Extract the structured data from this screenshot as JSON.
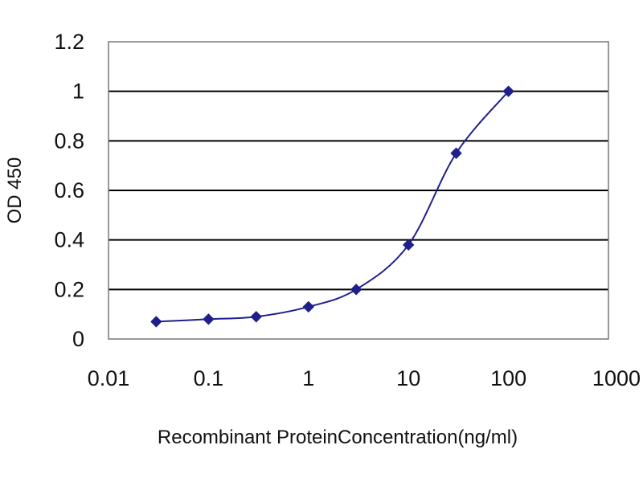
{
  "chart_data": {
    "type": "scatter",
    "title": "",
    "xlabel": "Recombinant ProteinConcentration(ng/ml)",
    "ylabel": "OD 450",
    "x_scale": "log",
    "xlim": [
      0.01,
      1000
    ],
    "ylim": [
      0,
      1.2
    ],
    "x_ticks": [
      0.01,
      0.1,
      1,
      10,
      100,
      1000
    ],
    "x_tick_labels": [
      "0.01",
      "0.1",
      "1",
      "10",
      "100",
      "1000"
    ],
    "y_ticks": [
      0,
      0.2,
      0.4,
      0.6,
      0.8,
      1,
      1.2
    ],
    "y_tick_labels": [
      "0",
      "0.2",
      "0.4",
      "0.6",
      "0.8",
      "1",
      "1.2"
    ],
    "grid": "horizontal",
    "legend": "none",
    "series": [
      {
        "color": "#1f1f8c",
        "marker": "diamond",
        "x": [
          0.03,
          0.1,
          0.3,
          1,
          3,
          10,
          30,
          100
        ],
        "y": [
          0.07,
          0.08,
          0.09,
          0.13,
          0.2,
          0.38,
          0.75,
          1.0
        ]
      }
    ],
    "colors": {
      "frame": "#777777",
      "gridline": "#000000",
      "series": "#1f1f8c"
    }
  }
}
